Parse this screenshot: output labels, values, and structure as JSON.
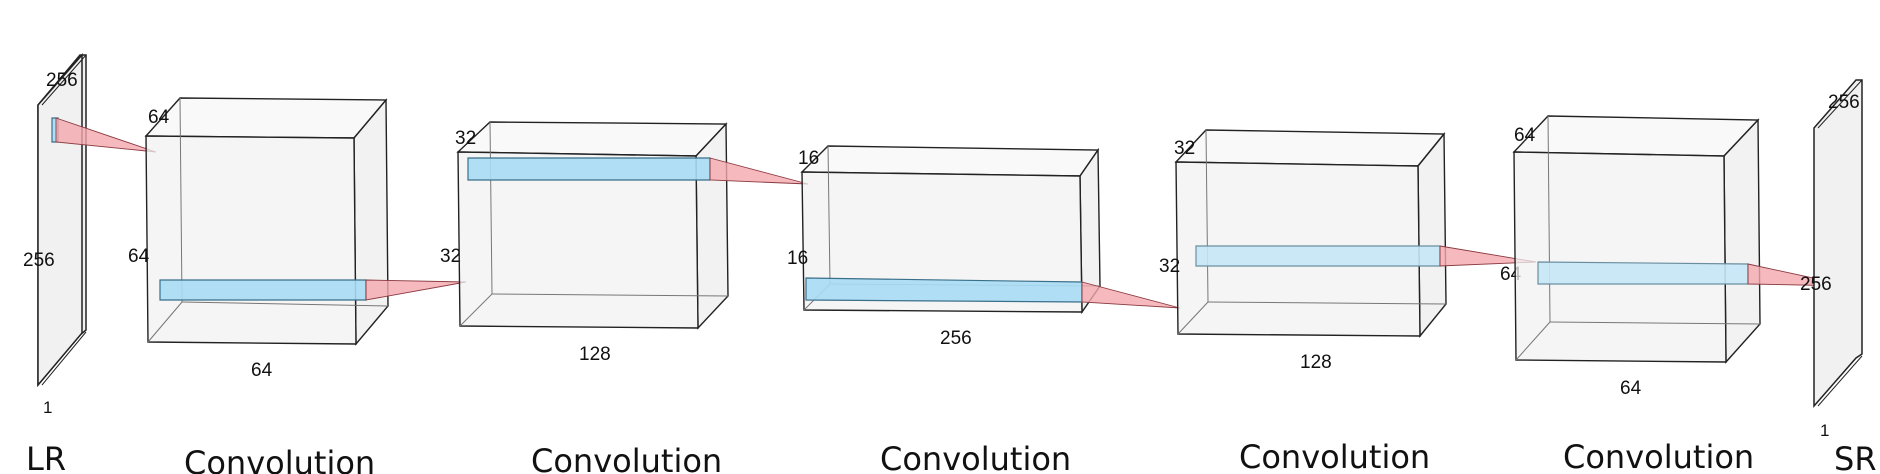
{
  "lr_plane": {
    "label": "LR",
    "top_dim": "256",
    "side_dim": "256",
    "depth_dim": "1"
  },
  "sr_plane": {
    "label": "SR",
    "top_dim": "256",
    "side_dim": "256",
    "depth_dim": "1"
  },
  "blocks": [
    {
      "caption": "Convolution",
      "dim_top": "64",
      "dim_side": "64",
      "dim_bottom": "64",
      "dim_right": "32"
    },
    {
      "caption": "Convolution",
      "dim_top": "32",
      "dim_bottom": "128"
    },
    {
      "caption": "Convolution",
      "dim_top": "16",
      "dim_side": "16",
      "dim_bottom": "256"
    },
    {
      "caption": "Convolution",
      "dim_top": "32",
      "dim_side": "32",
      "dim_bottom": "128",
      "dim_right": "64"
    },
    {
      "caption": "Convolution",
      "dim_top": "64",
      "dim_bottom": "64"
    }
  ]
}
